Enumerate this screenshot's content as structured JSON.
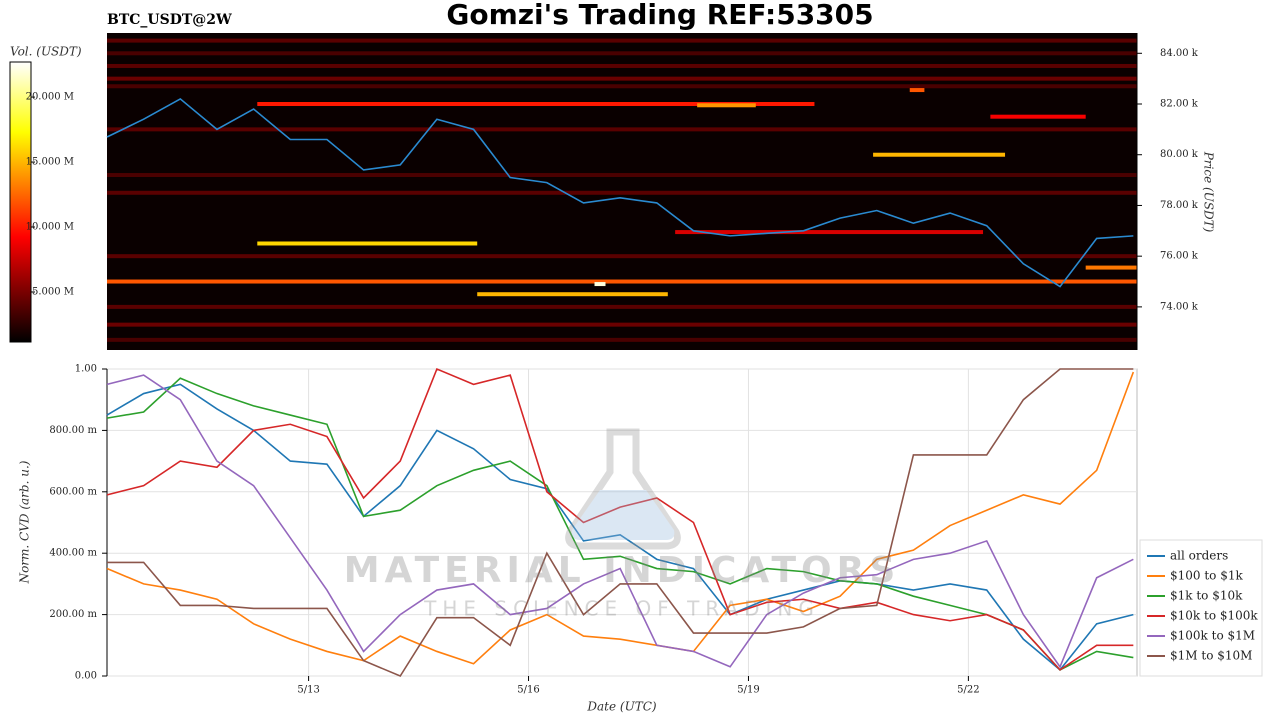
{
  "title": "Gomzi's Trading REF:53305",
  "watermark": [
    "MATERIAL INDICATORS",
    "THE SCIENCE OF TRADING"
  ],
  "chart_data": [
    {
      "type": "heatmap",
      "title": "BTC_USDT@2W",
      "ylabel": "Price (USDT)",
      "colorbar_label": "Vol. (USDT)",
      "xlim": [
        10.25,
        24.3
      ],
      "ylim": [
        72300,
        84800
      ],
      "yticks": [
        {
          "value": 74000,
          "label": "74.00 k"
        },
        {
          "value": 76000,
          "label": "76.00 k"
        },
        {
          "value": 78000,
          "label": "78.00 k"
        },
        {
          "value": 80000,
          "label": "80.00 k"
        },
        {
          "value": 82000,
          "label": "82.00 k"
        },
        {
          "value": 84000,
          "label": "84.00 k"
        }
      ],
      "clim": [
        1150000,
        22700000
      ],
      "cticks": [
        {
          "value": 5000000,
          "label": "5.000 M"
        },
        {
          "value": 10000000,
          "label": "10.000 M"
        },
        {
          "value": 15000000,
          "label": "15.000 M"
        },
        {
          "value": 20000000,
          "label": "20.000 M"
        }
      ],
      "levels": [
        {
          "price": 84500,
          "start": 10.25,
          "end": 24.3,
          "volume": 4000000
        },
        {
          "price": 84000,
          "start": 10.25,
          "end": 24.3,
          "volume": 3500000
        },
        {
          "price": 83500,
          "start": 10.25,
          "end": 24.3,
          "volume": 4000000
        },
        {
          "price": 83000,
          "start": 10.25,
          "end": 24.3,
          "volume": 4500000
        },
        {
          "price": 82700,
          "start": 10.25,
          "end": 24.3,
          "volume": 3500000
        },
        {
          "price": 81000,
          "start": 10.25,
          "end": 24.3,
          "volume": 4000000
        },
        {
          "price": 79200,
          "start": 10.25,
          "end": 24.3,
          "volume": 3500000
        },
        {
          "price": 78500,
          "start": 10.25,
          "end": 24.3,
          "volume": 4000000
        },
        {
          "price": 76000,
          "start": 10.25,
          "end": 24.3,
          "volume": 4000000
        },
        {
          "price": 74000,
          "start": 10.25,
          "end": 24.3,
          "volume": 4000000
        },
        {
          "price": 73300,
          "start": 10.25,
          "end": 24.3,
          "volume": 4500000
        },
        {
          "price": 72700,
          "start": 10.25,
          "end": 24.3,
          "volume": 3500000
        },
        {
          "price": 75000,
          "start": 10.25,
          "end": 24.3,
          "volume": 12000000
        },
        {
          "price": 76500,
          "start": 12.3,
          "end": 15.3,
          "volume": 16000000
        },
        {
          "price": 74500,
          "start": 15.3,
          "end": 17.9,
          "volume": 15000000
        },
        {
          "price": 74900,
          "start": 16.9,
          "end": 17.05,
          "volume": 22000000
        },
        {
          "price": 82000,
          "start": 12.3,
          "end": 19.9,
          "volume": 10000000
        },
        {
          "price": 81950,
          "start": 18.3,
          "end": 19.1,
          "volume": 14000000
        },
        {
          "price": 80000,
          "start": 20.7,
          "end": 22.5,
          "volume": 15000000
        },
        {
          "price": 82550,
          "start": 21.2,
          "end": 21.4,
          "volume": 12000000
        },
        {
          "price": 81500,
          "start": 22.3,
          "end": 23.6,
          "volume": 9000000
        },
        {
          "price": 75550,
          "start": 23.6,
          "end": 24.3,
          "volume": 13000000
        },
        {
          "price": 76950,
          "start": 18.0,
          "end": 22.2,
          "volume": 8000000
        }
      ],
      "x": [
        10.25,
        10.75,
        11.25,
        11.75,
        12.25,
        12.75,
        13.25,
        13.75,
        14.25,
        14.75,
        15.25,
        15.75,
        16.25,
        16.75,
        17.25,
        17.75,
        18.25,
        18.75,
        19.25,
        19.75,
        20.25,
        20.75,
        21.25,
        21.75,
        22.25,
        22.75,
        23.25,
        23.75,
        24.25
      ],
      "series": [
        {
          "color": "#2a8ad0",
          "values": [
            80700,
            81400,
            82200,
            81000,
            81800,
            80600,
            80600,
            79400,
            79600,
            81400,
            81000,
            79100,
            78900,
            78100,
            78300,
            78100,
            77000,
            76800,
            76900,
            77000,
            77500,
            77800,
            77300,
            77700,
            77200,
            75700,
            74800,
            76700,
            76800
          ]
        }
      ]
    },
    {
      "type": "line",
      "xlabel": "Date (UTC)",
      "ylabel": "Norm. CVD (arb. u.)",
      "grid": true,
      "legend": "lower right",
      "xlim": [
        10.25,
        24.3
      ],
      "ylim": [
        0,
        1
      ],
      "xticks": [
        {
          "value": 13,
          "label": "5/13"
        },
        {
          "value": 16,
          "label": "5/16"
        },
        {
          "value": 19,
          "label": "5/19"
        },
        {
          "value": 22,
          "label": "5/22"
        }
      ],
      "yticks": [
        {
          "value": 0,
          "label": "0.00"
        },
        {
          "value": 0.2,
          "label": "200.00 m"
        },
        {
          "value": 0.4,
          "label": "400.00 m"
        },
        {
          "value": 0.6,
          "label": "600.00 m"
        },
        {
          "value": 0.8,
          "label": "800.00 m"
        },
        {
          "value": 1,
          "label": "1.00"
        }
      ],
      "x": [
        10.25,
        10.75,
        11.25,
        11.75,
        12.25,
        12.75,
        13.25,
        13.75,
        14.25,
        14.75,
        15.25,
        15.75,
        16.25,
        16.75,
        17.25,
        17.75,
        18.25,
        18.75,
        19.25,
        19.75,
        20.25,
        20.75,
        21.25,
        21.75,
        22.25,
        22.75,
        23.25,
        23.75,
        24.25
      ],
      "series": [
        {
          "name": "all orders",
          "color": "#1f77b4",
          "values": [
            0.85,
            0.92,
            0.95,
            0.87,
            0.8,
            0.7,
            0.69,
            0.52,
            0.62,
            0.8,
            0.74,
            0.64,
            0.61,
            0.44,
            0.46,
            0.38,
            0.35,
            0.2,
            0.25,
            0.28,
            0.31,
            0.3,
            0.28,
            0.3,
            0.28,
            0.12,
            0.02,
            0.17,
            0.2
          ]
        },
        {
          "name": "$100 to $1k",
          "color": "#ff7f0e",
          "values": [
            0.35,
            0.3,
            0.28,
            0.25,
            0.17,
            0.12,
            0.08,
            0.05,
            0.13,
            0.08,
            0.04,
            0.15,
            0.2,
            0.13,
            0.12,
            0.1,
            0.08,
            0.23,
            0.25,
            0.21,
            0.26,
            0.38,
            0.41,
            0.49,
            0.54,
            0.59,
            0.56,
            0.67,
            0.99
          ]
        },
        {
          "name": "$1k to $10k",
          "color": "#2ca02c",
          "values": [
            0.84,
            0.86,
            0.97,
            0.92,
            0.88,
            0.85,
            0.82,
            0.52,
            0.54,
            0.62,
            0.67,
            0.7,
            0.62,
            0.38,
            0.39,
            0.35,
            0.34,
            0.3,
            0.35,
            0.34,
            0.31,
            0.3,
            0.26,
            0.23,
            0.2,
            0.15,
            0.02,
            0.08,
            0.06
          ]
        },
        {
          "name": "$10k to $100k",
          "color": "#d62728",
          "values": [
            0.59,
            0.62,
            0.7,
            0.68,
            0.8,
            0.82,
            0.78,
            0.58,
            0.7,
            1.0,
            0.95,
            0.98,
            0.6,
            0.5,
            0.55,
            0.58,
            0.5,
            0.2,
            0.24,
            0.25,
            0.22,
            0.24,
            0.2,
            0.18,
            0.2,
            0.15,
            0.02,
            0.1,
            0.1
          ]
        },
        {
          "name": "$100k to $1M",
          "color": "#9467bd",
          "values": [
            0.95,
            0.98,
            0.9,
            0.7,
            0.62,
            0.45,
            0.28,
            0.08,
            0.2,
            0.28,
            0.3,
            0.2,
            0.22,
            0.3,
            0.35,
            0.1,
            0.08,
            0.03,
            0.2,
            0.27,
            0.32,
            0.33,
            0.38,
            0.4,
            0.44,
            0.2,
            0.03,
            0.32,
            0.38
          ]
        },
        {
          "name": "$1M to $10M",
          "color": "#8c564b",
          "values": [
            0.37,
            0.37,
            0.23,
            0.23,
            0.22,
            0.22,
            0.22,
            0.05,
            0.0,
            0.19,
            0.19,
            0.1,
            0.4,
            0.2,
            0.3,
            0.3,
            0.14,
            0.14,
            0.14,
            0.16,
            0.22,
            0.23,
            0.72,
            0.72,
            0.72,
            0.9,
            1.0,
            1.0,
            1.0
          ]
        }
      ]
    }
  ]
}
